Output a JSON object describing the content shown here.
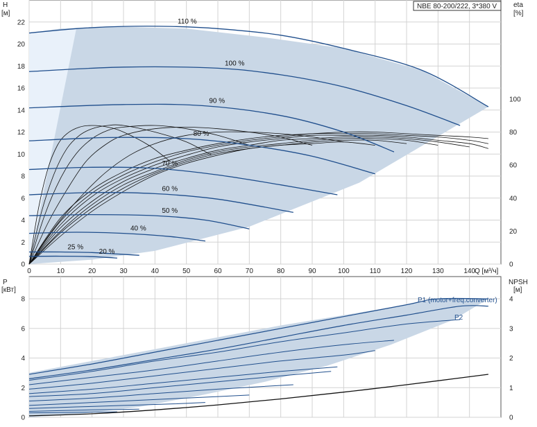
{
  "title": "NBE 80-200/222, 3*380 V",
  "chart_data": [
    {
      "type": "line",
      "title": "NBE 80-200/222, 3*380 V",
      "xlabel": "Q [м³/ч]",
      "ylabel_left": "H",
      "ylabel_left_unit": "[м]",
      "ylabel_right": "eta",
      "ylabel_right_unit": "[%]",
      "xlim": [
        0,
        150
      ],
      "ylim_left": [
        0,
        24
      ],
      "ylim_right": [
        0,
        160
      ],
      "x_ticks": [
        "0",
        "10",
        "20",
        "30",
        "40",
        "50",
        "60",
        "70",
        "80",
        "90",
        "100",
        "110",
        "120",
        "130",
        "140"
      ],
      "y_ticks_left": [
        "0",
        "2",
        "4",
        "6",
        "8",
        "10",
        "12",
        "14",
        "16",
        "18",
        "20",
        "22"
      ],
      "y_ticks_right": [
        "0",
        "20",
        "40",
        "60",
        "80",
        "100"
      ],
      "operating_range": [
        [
          0,
          21
        ],
        [
          10,
          21.4
        ],
        [
          25,
          21.6
        ],
        [
          50,
          21.4
        ],
        [
          75,
          20.6
        ],
        [
          100,
          19.6
        ],
        [
          125,
          17.6
        ],
        [
          146,
          14.3
        ],
        [
          105,
          7.4
        ],
        [
          70,
          3.4
        ],
        [
          40,
          1.2
        ],
        [
          20,
          0.4
        ],
        [
          0,
          0
        ]
      ],
      "head_curves": [
        {
          "name": "110 %",
          "x": [
            0,
            15,
            30,
            45,
            60,
            80,
            100,
            125,
            146
          ],
          "y": [
            21,
            21.4,
            21.6,
            21.6,
            21.4,
            20.8,
            19.6,
            17.6,
            14.3
          ]
        },
        {
          "name": "100 %",
          "x": [
            0,
            30,
            60,
            80,
            100,
            120,
            137
          ],
          "y": [
            17.5,
            17.9,
            17.8,
            17.2,
            16.1,
            14.4,
            12.6
          ]
        },
        {
          "name": "90 %",
          "x": [
            0,
            30,
            55,
            80,
            100,
            116
          ],
          "y": [
            14.2,
            14.5,
            14.4,
            13.5,
            12,
            10.2
          ]
        },
        {
          "name": "80 %",
          "x": [
            0,
            25,
            50,
            70,
            90,
            110
          ],
          "y": [
            11.2,
            11.5,
            11.4,
            10.8,
            9.8,
            8.2
          ]
        },
        {
          "name": "70 %",
          "x": [
            0,
            20,
            40,
            60,
            80,
            98
          ],
          "y": [
            8.6,
            8.8,
            8.7,
            8.1,
            7.2,
            6.3
          ]
        },
        {
          "name": "60 %",
          "x": [
            0,
            20,
            40,
            60,
            84
          ],
          "y": [
            6.3,
            6.5,
            6.4,
            5.9,
            4.7
          ]
        },
        {
          "name": "50 %",
          "x": [
            0,
            20,
            40,
            56,
            70
          ],
          "y": [
            4.4,
            4.5,
            4.4,
            4,
            3.2
          ]
        },
        {
          "name": "40 %",
          "x": [
            0,
            15,
            30,
            45,
            56
          ],
          "y": [
            2.8,
            2.9,
            2.8,
            2.5,
            2.1
          ]
        },
        {
          "name": "25 %",
          "x": [
            0,
            10,
            20,
            29,
            35
          ],
          "y": [
            1.1,
            1.1,
            1.05,
            0.9,
            0.8
          ]
        },
        {
          "name": "20 %",
          "x": [
            0,
            10,
            20,
            28
          ],
          "y": [
            0.7,
            0.72,
            0.68,
            0.55
          ]
        }
      ],
      "eta_curves": [
        {
          "x": [
            0,
            10,
            20,
            30,
            40,
            50,
            60,
            70,
            80,
            90,
            100,
            110,
            120,
            130,
            140,
            146
          ],
          "y": [
            0,
            28,
            45,
            56,
            64,
            69,
            73,
            76,
            78,
            79,
            80,
            80,
            79,
            78,
            77,
            76
          ]
        },
        {
          "x": [
            0,
            10,
            20,
            30,
            40,
            50,
            60,
            70,
            80,
            90,
            100,
            110,
            120,
            130,
            140,
            146
          ],
          "y": [
            0,
            26,
            43,
            54,
            62,
            68,
            72,
            75,
            77,
            79,
            79,
            79,
            78,
            77,
            75,
            73
          ]
        },
        {
          "x": [
            0,
            10,
            20,
            30,
            40,
            50,
            60,
            70,
            80,
            90,
            100,
            110,
            120,
            130,
            140,
            146
          ],
          "y": [
            0,
            24,
            41,
            52,
            60,
            66,
            71,
            74,
            76,
            78,
            78,
            78,
            77,
            75,
            73,
            70
          ]
        },
        {
          "x": [
            0,
            10,
            20,
            30,
            40,
            50,
            60,
            70,
            80,
            90,
            100,
            110,
            120,
            130,
            140
          ],
          "y": [
            0,
            22,
            38,
            50,
            58,
            64,
            69,
            72,
            75,
            76,
            77,
            77,
            76,
            74,
            71
          ]
        },
        {
          "x": [
            0,
            10,
            20,
            30,
            40,
            50,
            60,
            70,
            80,
            90,
            100,
            110,
            120,
            130
          ],
          "y": [
            0,
            20,
            36,
            48,
            56,
            63,
            68,
            71,
            73,
            75,
            76,
            76,
            75,
            72
          ]
        },
        {
          "x": [
            0,
            10,
            20,
            30,
            40,
            50,
            60,
            70,
            80,
            90,
            100,
            110,
            120
          ],
          "y": [
            0,
            19,
            34,
            46,
            55,
            62,
            67,
            70,
            72,
            74,
            75,
            75,
            73
          ]
        },
        {
          "x": [
            0,
            10,
            20,
            30,
            40,
            50,
            60,
            70,
            80,
            90,
            100,
            110
          ],
          "y": [
            0,
            17,
            32,
            44,
            54,
            61,
            66,
            70,
            72,
            73,
            74,
            72
          ]
        },
        {
          "x": [
            0,
            8,
            16,
            24,
            32,
            40,
            50,
            60,
            70,
            80,
            90,
            100
          ],
          "y": [
            0,
            22,
            40,
            55,
            66,
            73,
            78,
            80,
            80,
            79,
            77,
            74
          ]
        },
        {
          "x": [
            0,
            6,
            12,
            18,
            24,
            30,
            40,
            50,
            60,
            70,
            80,
            90
          ],
          "y": [
            0,
            25,
            45,
            62,
            72,
            78,
            82,
            83,
            82,
            80,
            77,
            72
          ]
        },
        {
          "x": [
            0,
            5,
            10,
            15,
            20,
            25,
            30,
            40,
            50,
            60,
            70
          ],
          "y": [
            0,
            30,
            52,
            67,
            76,
            81,
            83,
            84,
            82,
            78,
            72
          ]
        },
        {
          "x": [
            0,
            4,
            8,
            12,
            16,
            20,
            25,
            30,
            40,
            50,
            58
          ],
          "y": [
            0,
            32,
            55,
            70,
            78,
            82,
            84,
            84,
            80,
            74,
            66
          ]
        },
        {
          "x": [
            0,
            3,
            6,
            9,
            12,
            16,
            20,
            25,
            30,
            38,
            45
          ],
          "y": [
            0,
            34,
            58,
            72,
            79,
            83,
            84,
            83,
            80,
            72,
            62
          ]
        }
      ]
    },
    {
      "type": "line",
      "title": "",
      "xlabel": "Q [м³/ч]",
      "ylabel_left": "P",
      "ylabel_left_unit": "[кВт]",
      "ylabel_right": "NPSH",
      "ylabel_right_unit": "[м]",
      "xlim": [
        0,
        150
      ],
      "ylim_left": [
        0,
        9.5
      ],
      "ylim_right": [
        0,
        4.75
      ],
      "y_ticks_left": [
        "0",
        "2",
        "4",
        "6",
        "8"
      ],
      "y_ticks_right": [
        "0",
        "1",
        "2",
        "3",
        "4"
      ],
      "series_labels": [
        "P1 (motor+freq.converter)",
        "P2"
      ],
      "power_range": [
        [
          0,
          3
        ],
        [
          10,
          3.4
        ],
        [
          20,
          3.8
        ],
        [
          40,
          4.6
        ],
        [
          60,
          5.4
        ],
        [
          80,
          6.2
        ],
        [
          100,
          6.9
        ],
        [
          120,
          7.6
        ],
        [
          130,
          8.0
        ],
        [
          146,
          8.0
        ],
        [
          135,
          6.6
        ],
        [
          115,
          4.9
        ],
        [
          95,
          3.5
        ],
        [
          75,
          2.4
        ],
        [
          55,
          1.5
        ],
        [
          35,
          0.7
        ],
        [
          15,
          0.2
        ],
        [
          0,
          0
        ]
      ],
      "power_curves": [
        {
          "name": "P1",
          "x": [
            0,
            20,
            40,
            60,
            80,
            100,
            120,
            130,
            146
          ],
          "y": [
            2.9,
            3.6,
            4.4,
            5.2,
            6.0,
            6.8,
            7.6,
            8.0,
            8.0
          ]
        },
        {
          "name": "P2",
          "x": [
            0,
            20,
            40,
            60,
            80,
            100,
            120,
            137,
            146
          ],
          "y": [
            2.6,
            3.2,
            3.9,
            4.6,
            5.4,
            6.2,
            6.9,
            7.5,
            7.5
          ]
        },
        {
          "x": [
            0,
            20,
            40,
            60,
            80,
            100,
            120,
            137
          ],
          "y": [
            2.5,
            3.1,
            3.8,
            4.4,
            5.1,
            5.7,
            6.3,
            6.6
          ]
        },
        {
          "x": [
            0,
            20,
            40,
            60,
            80,
            100,
            116
          ],
          "y": [
            2.2,
            2.7,
            3.2,
            3.8,
            4.4,
            4.9,
            5.2
          ]
        },
        {
          "x": [
            0,
            20,
            40,
            60,
            80,
            100,
            110
          ],
          "y": [
            1.9,
            2.3,
            2.8,
            3.3,
            3.8,
            4.2,
            4.5
          ]
        },
        {
          "x": [
            0,
            20,
            40,
            60,
            80,
            98
          ],
          "y": [
            1.6,
            1.9,
            2.3,
            2.7,
            3.1,
            3.4
          ]
        },
        {
          "x": [
            0,
            20,
            40,
            60,
            80,
            96
          ],
          "y": [
            1.4,
            1.6,
            2.0,
            2.4,
            2.8,
            3.1
          ]
        },
        {
          "x": [
            0,
            20,
            40,
            60,
            84
          ],
          "y": [
            1.1,
            1.3,
            1.6,
            1.9,
            2.2
          ]
        },
        {
          "x": [
            0,
            20,
            40,
            60,
            70
          ],
          "y": [
            0.8,
            1.0,
            1.2,
            1.4,
            1.5
          ]
        },
        {
          "x": [
            0,
            15,
            30,
            45,
            56
          ],
          "y": [
            0.6,
            0.7,
            0.8,
            0.9,
            1.0
          ]
        },
        {
          "x": [
            0,
            10,
            20,
            35
          ],
          "y": [
            0.4,
            0.45,
            0.5,
            0.55
          ]
        },
        {
          "x": [
            0,
            10,
            20,
            28
          ],
          "y": [
            0.3,
            0.32,
            0.35,
            0.37
          ]
        }
      ],
      "npsh_curve": {
        "x": [
          0,
          20,
          40,
          60,
          80,
          100,
          120,
          135,
          146
        ],
        "y": [
          0.05,
          0.12,
          0.25,
          0.42,
          0.62,
          0.85,
          1.1,
          1.3,
          1.45
        ]
      }
    }
  ]
}
